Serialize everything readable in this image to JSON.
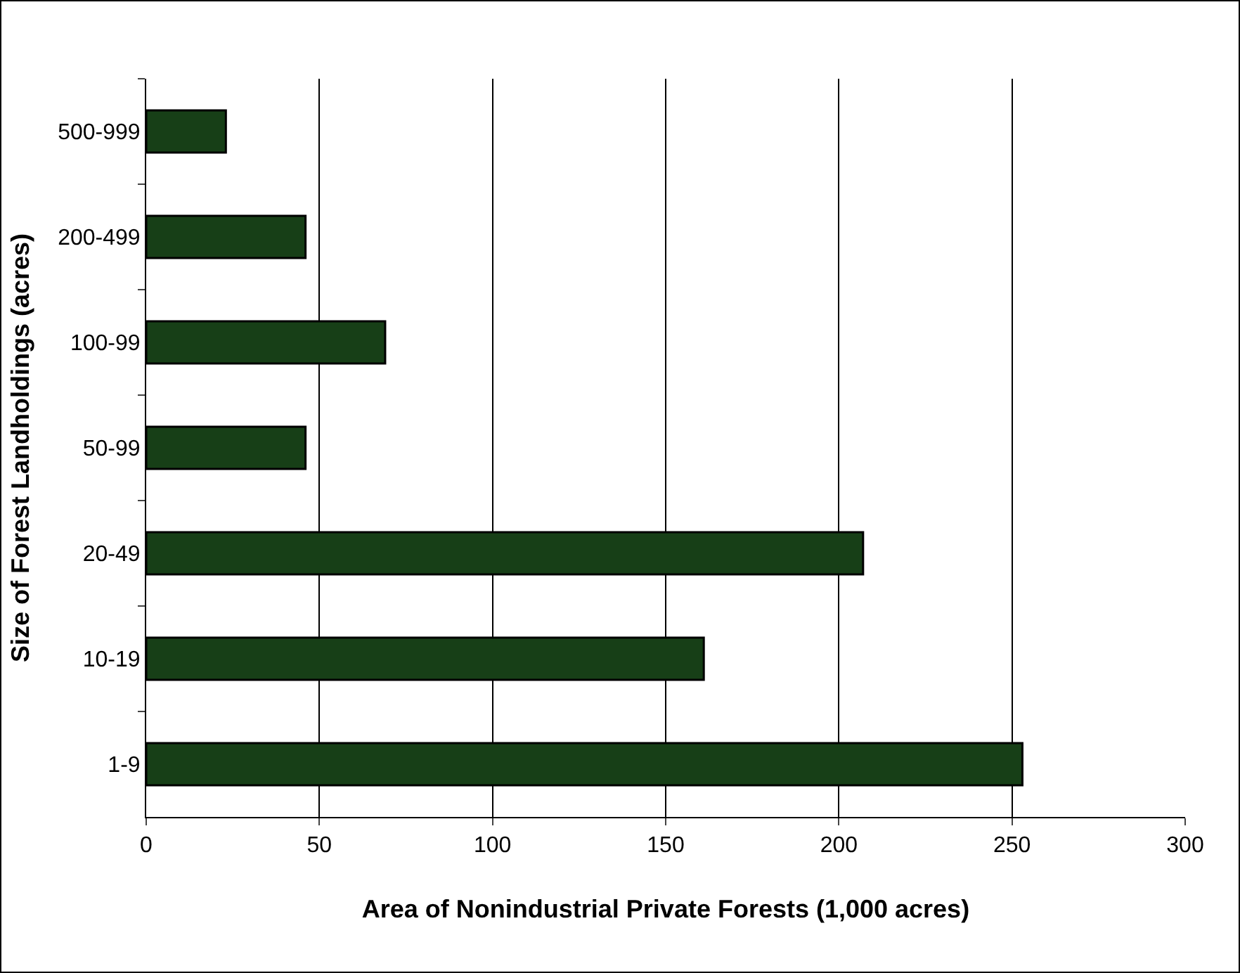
{
  "chart_data": {
    "type": "bar",
    "orientation": "horizontal",
    "xlabel": "Area of Nonindustrial Private Forests (1,000 acres)",
    "ylabel": "Size of Forest Landholdings (acres)",
    "categories": [
      "500-999",
      "200-499",
      "100-99",
      "50-99",
      "20-49",
      "10-19",
      "1-9"
    ],
    "values": [
      23,
      46,
      69,
      46,
      207,
      161,
      253
    ],
    "color": "#173f17",
    "xlim": [
      0,
      300
    ],
    "xticks": [
      0,
      50,
      100,
      150,
      200,
      250,
      300
    ],
    "grid": "x"
  }
}
